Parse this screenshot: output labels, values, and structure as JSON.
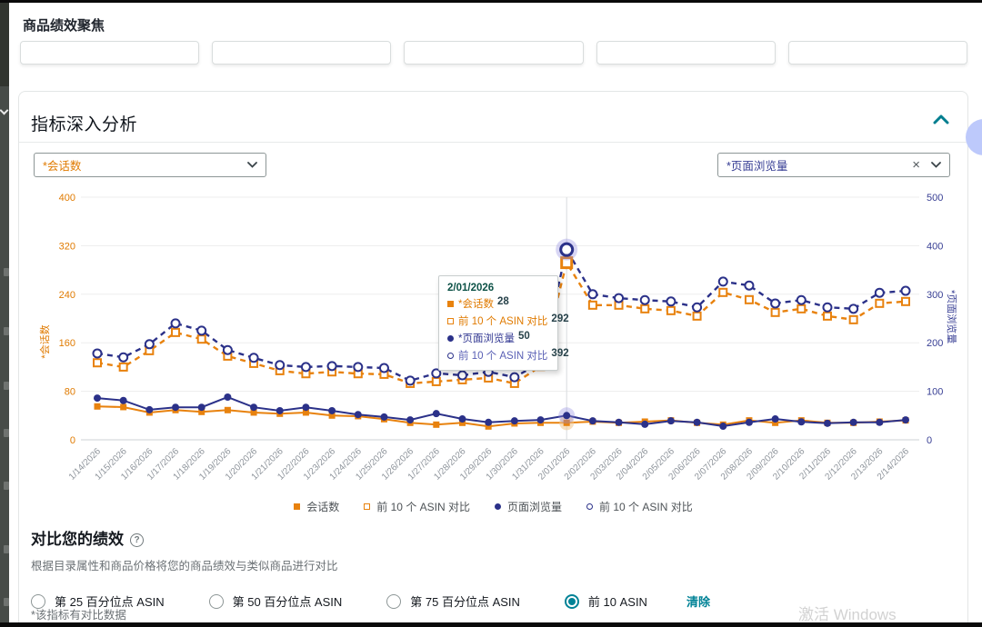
{
  "page": {
    "title": "商品绩效聚焦",
    "footnote": "*该指标有对比数据",
    "watermark": "激活 Windows"
  },
  "cards_row": {
    "count": 5
  },
  "panel": {
    "title": "指标深入分析"
  },
  "dropdowns": {
    "left": {
      "value": "*会话数"
    },
    "right": {
      "value": "*页面浏览量",
      "clear_icon": "×"
    }
  },
  "chart_data": {
    "type": "line",
    "x": [
      "1/14/2026",
      "1/15/2026",
      "1/16/2026",
      "1/17/2026",
      "1/18/2026",
      "1/19/2026",
      "1/20/2026",
      "1/21/2026",
      "1/22/2026",
      "1/23/2026",
      "1/24/2026",
      "1/25/2026",
      "1/26/2026",
      "1/27/2026",
      "1/28/2026",
      "1/29/2026",
      "1/30/2026",
      "1/31/2026",
      "2/01/2026",
      "2/02/2026",
      "2/03/2026",
      "2/04/2026",
      "2/05/2026",
      "2/06/2026",
      "2/07/2026",
      "2/08/2026",
      "2/09/2026",
      "2/10/2026",
      "2/11/2026",
      "2/12/2026",
      "2/13/2026",
      "2/14/2026"
    ],
    "series": [
      {
        "name": "会话数",
        "axis": "left",
        "style": "solid",
        "marker": "square-filled",
        "color": "#e8820e",
        "values": [
          55,
          54,
          45,
          49,
          46,
          49,
          45,
          43,
          45,
          40,
          39,
          34,
          28,
          25,
          28,
          22,
          27,
          28,
          28,
          30,
          28,
          30,
          32,
          28,
          25,
          32,
          28,
          32,
          28,
          28,
          30,
          32
        ]
      },
      {
        "name": "前 10 个 ASIN 对比",
        "axis": "left",
        "style": "dashed",
        "marker": "square-hollow",
        "color": "#e8820e",
        "values": [
          127,
          120,
          147,
          177,
          166,
          138,
          126,
          114,
          109,
          112,
          109,
          108,
          93,
          96,
          99,
          102,
          93,
          121,
          292,
          222,
          222,
          216,
          213,
          204,
          243,
          231,
          210,
          216,
          204,
          198,
          225,
          228
        ]
      },
      {
        "name": "页面浏览量",
        "axis": "right",
        "style": "solid",
        "marker": "circle-filled",
        "color": "#2b3189",
        "values": [
          86,
          81,
          62,
          67,
          67,
          88,
          67,
          60,
          67,
          60,
          52,
          47,
          41,
          54,
          43,
          36,
          39,
          41,
          50,
          39,
          36,
          32,
          39,
          36,
          28,
          36,
          43,
          37,
          34,
          36,
          36,
          41
        ]
      },
      {
        "name": "前 10 个 ASIN 对比",
        "axis": "right",
        "style": "dashed",
        "marker": "circle-hollow",
        "color": "#2b3189",
        "values": [
          178,
          170,
          197,
          240,
          225,
          185,
          169,
          154,
          150,
          152,
          150,
          148,
          122,
          137,
          133,
          140,
          129,
          159,
          392,
          300,
          292,
          288,
          285,
          273,
          326,
          318,
          281,
          288,
          273,
          270,
          303,
          307
        ]
      }
    ],
    "left_axis": {
      "label": "*会话数",
      "ticks": [
        0,
        80,
        160,
        240,
        320,
        400
      ],
      "max": 400,
      "color": "#e07b02"
    },
    "right_axis": {
      "label": "*页面浏览量",
      "ticks": [
        0,
        100,
        200,
        300,
        400,
        500
      ],
      "max": 500,
      "color": "#383f94"
    },
    "highlight_index": 18,
    "grid": true,
    "legend_position": "bottom"
  },
  "tooltip": {
    "date": "2/01/2026",
    "rows": [
      {
        "marker": "ic-sq-f",
        "label": "*会话数",
        "value": "28",
        "cls": "tt-orange"
      },
      {
        "marker": "ic-sq-h",
        "label": "前 10 个 ASIN 对比",
        "value": "292",
        "cls": "tt-orange"
      },
      {
        "marker": "ic-ci-f",
        "label": "*页面浏览量",
        "value": "50",
        "cls": "tt-navy"
      },
      {
        "marker": "ic-ci-h",
        "label": "前 10 个 ASIN 对比",
        "value": "392",
        "cls": "tt-indigo"
      }
    ]
  },
  "legend": [
    {
      "marker": "ic-sq-f",
      "label": "会话数"
    },
    {
      "marker": "ic-sq-h",
      "label": "前 10 个 ASIN 对比"
    },
    {
      "marker": "ic-ci-f",
      "label": "页面浏览量"
    },
    {
      "marker": "ic-ci-h",
      "label": "前 10 个 ASIN 对比"
    }
  ],
  "compare": {
    "title": "对比您的绩效",
    "help_icon": "?",
    "subtitle": "根据目录属性和商品价格将您的商品绩效与类似商品进行对比",
    "options": [
      {
        "label": "第 25 百分位点 ASIN",
        "selected": false
      },
      {
        "label": "第 50 百分位点 ASIN",
        "selected": false
      },
      {
        "label": "第 75 百分位点 ASIN",
        "selected": false
      },
      {
        "label": "前 10 ASIN",
        "selected": true
      }
    ],
    "clear_label": "清除"
  },
  "colors": {
    "accent_teal": "#008296",
    "orange": "#e8820e",
    "navy": "#2b3189",
    "halo": "#8f8ae0"
  }
}
